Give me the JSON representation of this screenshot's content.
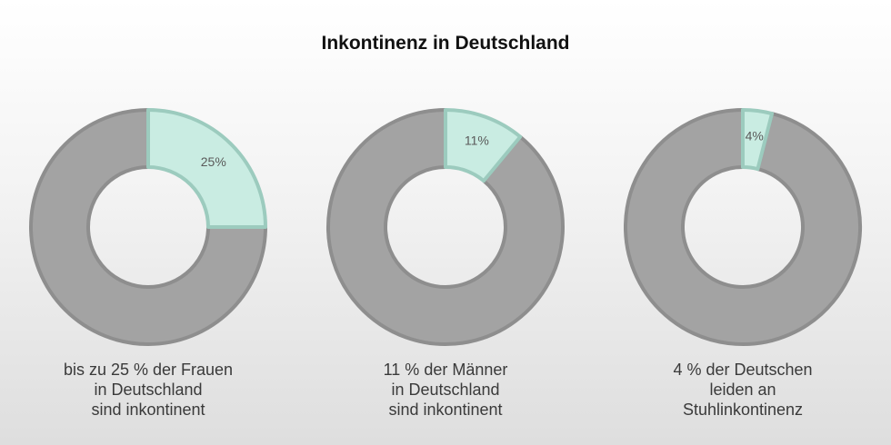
{
  "title": "Inkontinenz in Deutschland",
  "colors": {
    "base": "#a3a3a3",
    "base_stroke": "#8e8e8e",
    "accent": "#c9ece2",
    "accent_stroke": "#9ccbbe",
    "label": "#5a5a5a"
  },
  "chart_data": [
    {
      "type": "pie",
      "title": "bis zu 25 % der Frauen in Deutschland sind inkontinent",
      "slices": [
        {
          "label": "25%",
          "value": 25,
          "highlight": true
        },
        {
          "label": "",
          "value": 75,
          "highlight": false
        }
      ],
      "caption_lines": [
        "bis zu 25 % der Frauen",
        "in Deutschland",
        "sind inkontinent"
      ]
    },
    {
      "type": "pie",
      "title": "11 % der Männer in Deutschland sind inkontinent",
      "slices": [
        {
          "label": "11%",
          "value": 11,
          "highlight": true
        },
        {
          "label": "",
          "value": 89,
          "highlight": false
        }
      ],
      "caption_lines": [
        "11 % der Männer",
        "in Deutschland",
        "sind inkontinent"
      ]
    },
    {
      "type": "pie",
      "title": "4 % der Deutschen leiden an Stuhlinkontinenz",
      "slices": [
        {
          "label": "4%",
          "value": 4,
          "highlight": true
        },
        {
          "label": "",
          "value": 96,
          "highlight": false
        }
      ],
      "caption_lines": [
        "4 % der Deutschen",
        "leiden an",
        "Stuhlinkontinenz"
      ]
    }
  ]
}
